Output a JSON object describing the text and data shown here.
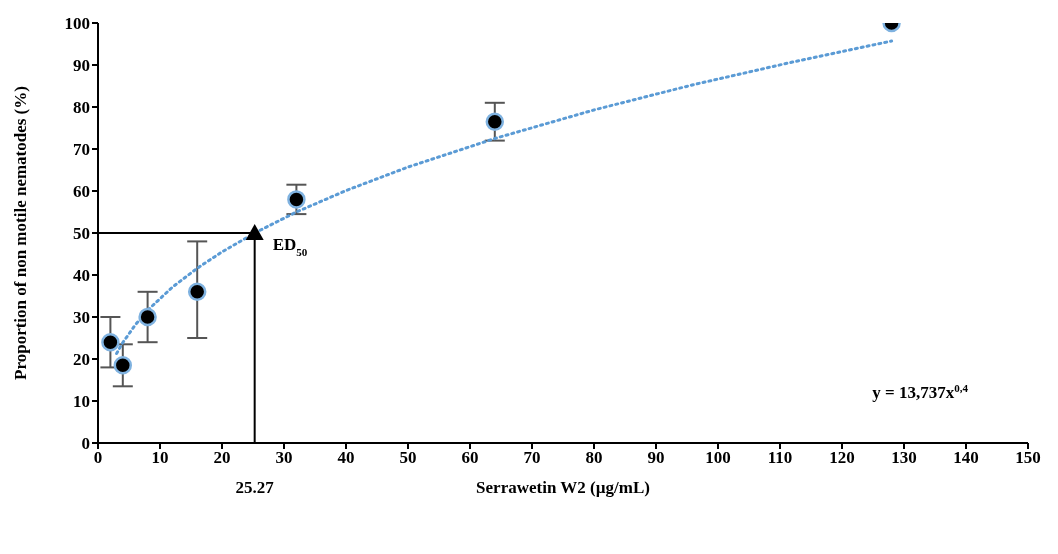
{
  "chart_data": {
    "type": "scatter",
    "xlabel": "Serrawetin W2 (µg/mL)",
    "ylabel": "Proportion of non motile nematodes (%)",
    "xlim": [
      0,
      150
    ],
    "xticks": [
      0,
      10,
      20,
      30,
      40,
      50,
      60,
      70,
      80,
      90,
      100,
      110,
      120,
      130,
      140,
      150
    ],
    "ylim": [
      0,
      100
    ],
    "yticks": [
      0,
      10,
      20,
      30,
      40,
      50,
      60,
      70,
      80,
      90,
      100
    ],
    "grid": false,
    "legend": false,
    "series": [
      {
        "type": "line",
        "color": "#5b9bd5",
        "line_style": "dotted",
        "marker": "none",
        "x": [
          3,
          4,
          6,
          8,
          12,
          16,
          20,
          25.27,
          32,
          40,
          50,
          64,
          80,
          96,
          112,
          128
        ],
        "values": [
          21.3,
          23.9,
          28.1,
          31.6,
          37.1,
          41.6,
          45.5,
          50,
          55,
          60.1,
          65.7,
          72.5,
          79.3,
          85.3,
          90.7,
          95.7
        ]
      },
      {
        "color": "#000000",
        "marker": "circle",
        "x": [
          2,
          4,
          8,
          16,
          32,
          64,
          128
        ],
        "values": [
          24,
          18.5,
          30,
          36,
          58,
          76.5,
          100
        ],
        "errors": [
          [
            18,
            30
          ],
          [
            13.5,
            23.5
          ],
          [
            24,
            36
          ],
          [
            25,
            48
          ],
          [
            54.5,
            61.5
          ],
          [
            72,
            81
          ],
          null
        ]
      },
      {
        "type": "scatter",
        "color": "#000000",
        "marker": "triangle",
        "x": [
          25.27
        ],
        "values": [
          50
        ]
      }
    ],
    "ref_lines": [
      {
        "axis": "x",
        "value": 25.27,
        "label": "25.27",
        "color": "#000000"
      },
      {
        "axis": "y",
        "value": 50,
        "color": "#000000"
      }
    ],
    "annotations": [
      {
        "text": "ED$_{50}$",
        "x": 25.27,
        "y": 50
      },
      "y = 13,737x$^{0,4}$"
    ]
  }
}
